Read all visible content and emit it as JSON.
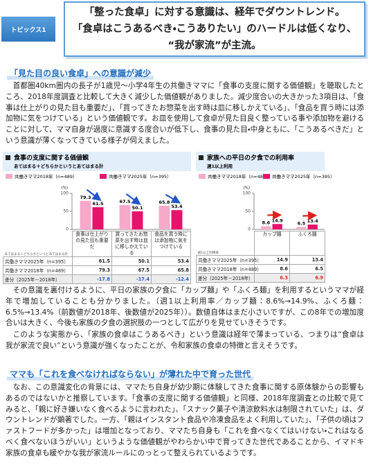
{
  "header": {
    "label": "トピックス1",
    "title_lines": [
      "「整った食卓」に対する意識は、経年でダウントレンド。",
      "「食卓はこうあるべき・こうありたい」のハードルは低くなり、",
      "“我が家流”が主流。"
    ]
  },
  "sections": [
    {
      "heading": "「見た目の良い食卓」への意識が減少",
      "paragraphs": [
        "首都圏40km圏内の長子が1歳児～小学4年生の共働きママに「食事の支度に関する価値観」を聴取したところ、2018年度調査と比較して大きく減少した価値観がありました。減少度合いの大きかった3項目は、「食事は仕上がりの見た目も重要だ」、「買ってきたお惣菜を出す時は皿に移しかえている」、「食品を買う時には添加物に気をつけている」という価値観です。お皿を使用して食卓が見た目良く整っている事や添加物を避けることに対して、ママ自身が過度に意識する度合いが低下し、食事の見た目・中身ともに、「こうあるべきだ」という意識が薄くなってきている様子が伺えました。",
        "その意識を裏付けるように、平日の家族の夕食に「カップ麺」や「ふくろ麺」を利用するというママが経年で増加していることも分かりました。（週1以上利用率／カップ麺：8.6%→14.9%、ふくろ麺：6.5%→13.4%（前数値が2018年、後数値が2025年））。数値自体はまだ小さいですが、この8年での増加度合いは大きく、今後も家族の夕食の選択肢の一つとして広がりを見せていきそうです。",
        "このような実態から、「家族の食卓はこうあるべき」という意識は経年で薄まっている、つまりは“食卓は我が家流で良い”という意識が強くなったことが、令和家族の食卓の特徴と言えそうです。"
      ]
    },
    {
      "heading": "ママも「これを食べなければならない」が薄れた中で育った世代",
      "paragraphs": [
        "なお、この意識変化の背景には、ママたち自身が幼少期に体験してきた食事に関する原体験からの影響もあるのではないかと推察しています。「食事の支度に関する価値観」と同様、2018年度調査との比較で見てみると、「親に好き嫌いなく食べるように言われた」、「スナック菓子や清涼飲料水は制限されていた」は、ダウントレンドが顕著でした。一方、「親はインスタント食品や冷凍食品をよく利用していた」、「子供の頃はファストフードが多かった」は増加となっており、ママたち自身も「これを食べなくてはいけない・これはなるべく食べないほうがいい」というような価値観がやわらかい中で育ってきた世代であることから、イマドキ家族の食卓も緩やかな我が家流ルールにのっとって整えられているようです。"
      ]
    }
  ],
  "chart_data": [
    {
      "type": "bar",
      "title": "食事の支度に関する価値観",
      "subtitle": "あてはまる＋どちらかというとあてはまる計",
      "unit": "(%)",
      "axis_note": "あてはまる＋どちらかというとあてはまる計",
      "categories": [
        "食事は仕上がりの見た目も重要だ",
        "買ってきたお惣菜を出す時は皿に移しかえている",
        "食品を買う時には添加物に気をつけている"
      ],
      "series": [
        {
          "name": "共働きママ2018年（n=489）",
          "color": "#f6a9c9",
          "values": [
            79.3,
            67.5,
            65.8
          ]
        },
        {
          "name": "共働きママ2025年（n=395）",
          "color": "#e8126b",
          "values": [
            61.5,
            50.1,
            53.4
          ]
        }
      ],
      "difference": {
        "name": "差分（2025年－2018年）",
        "color": "#2456c8",
        "values": [
          -17.8,
          -17.4,
          -12.4
        ]
      },
      "ylim": [
        0,
        100
      ],
      "yticks": [
        0,
        50,
        100
      ]
    },
    {
      "type": "bar",
      "title": "家族への平日の夕食での利用率",
      "subtitle": "週1以上利用",
      "unit": "(%)",
      "axis_note": "週1以上利用率",
      "categories": [
        "カップ麺",
        "ふくろ麺"
      ],
      "series": [
        {
          "name": "共働きママ2018年（n=489）",
          "color": "#f6a9c9",
          "values": [
            8.6,
            6.5
          ]
        },
        {
          "name": "共働きママ2025年（n=395）",
          "color": "#e8126b",
          "values": [
            14.9,
            13.4
          ]
        }
      ],
      "difference": {
        "name": "差分（2025年－2018年）",
        "color": "#e0201c",
        "values": [
          6.3,
          6.9
        ]
      },
      "ylim": [
        0,
        100
      ],
      "yticks": [
        0,
        50,
        100
      ]
    }
  ]
}
